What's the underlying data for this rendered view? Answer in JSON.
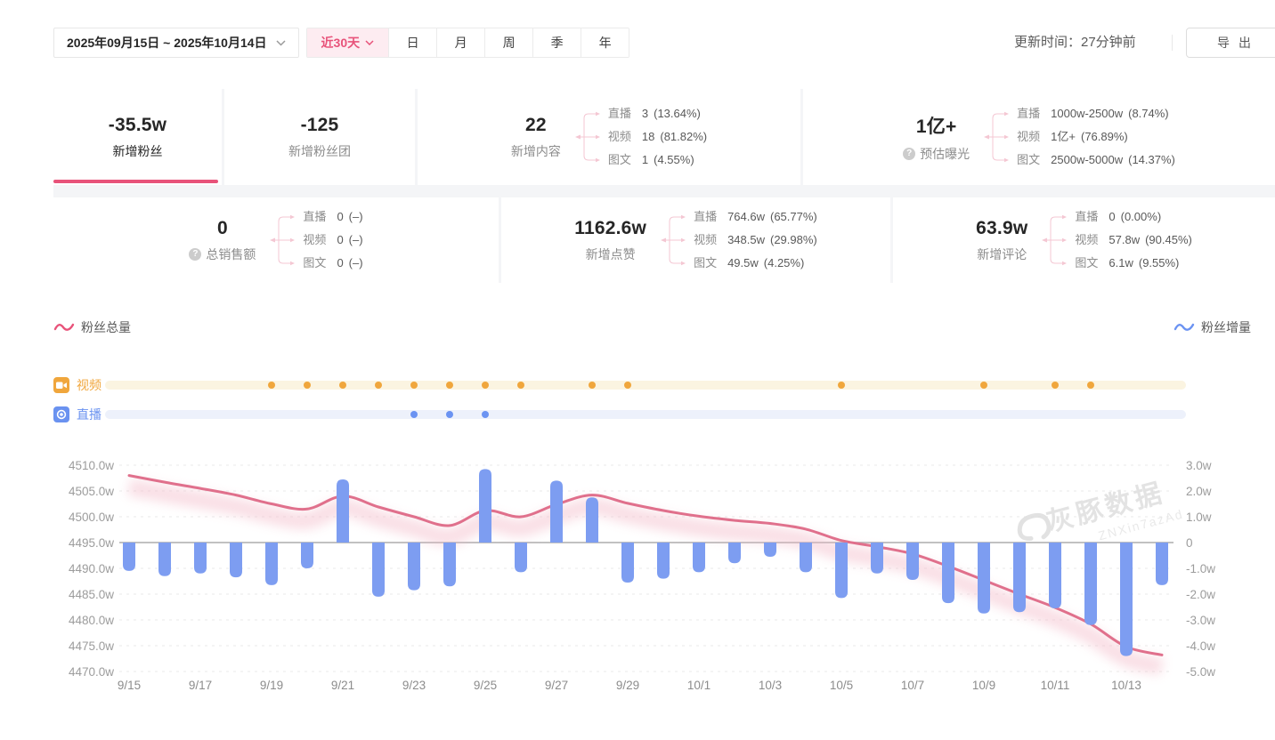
{
  "colors": {
    "accent_pink": "#e8537a",
    "line_pink": "#e0708c",
    "bar_blue": "#7d9df1",
    "video_orange": "#f0a63c",
    "live_blue": "#6b93f2"
  },
  "toolbar": {
    "date_range": "2025年09月15日 ~ 2025年10月14日",
    "quick_range": "近30天",
    "period_tabs": [
      "日",
      "月",
      "周",
      "季",
      "年"
    ],
    "update_time_label": "更新时间：27分钟前",
    "export_label": "导出"
  },
  "stats": {
    "cards": [
      {
        "value": "-35.5w",
        "label": "新增粉丝",
        "selected": true
      },
      {
        "value": "-125",
        "label": "新增粉丝团"
      },
      {
        "value": "22",
        "label": "新增内容",
        "breakdown": [
          {
            "name": "直播",
            "value": "3",
            "pct": "(13.64%)"
          },
          {
            "name": "视频",
            "value": "18",
            "pct": "(81.82%)"
          },
          {
            "name": "图文",
            "value": "1",
            "pct": "(4.55%)"
          }
        ]
      },
      {
        "value": "1亿+",
        "label": "预估曝光",
        "help": true,
        "breakdown": [
          {
            "name": "直播",
            "value": "1000w-2500w",
            "pct": "(8.74%)"
          },
          {
            "name": "视频",
            "value": "1亿+",
            "pct": "(76.89%)"
          },
          {
            "name": "图文",
            "value": "2500w-5000w",
            "pct": "(14.37%)"
          }
        ]
      },
      {
        "value": "0",
        "label": "总销售额",
        "help": true,
        "breakdown": [
          {
            "name": "直播",
            "value": "0",
            "pct": "(–)"
          },
          {
            "name": "视频",
            "value": "0",
            "pct": "(–)"
          },
          {
            "name": "图文",
            "value": "0",
            "pct": "(–)"
          }
        ]
      },
      {
        "value": "1162.6w",
        "label": "新增点赞",
        "breakdown": [
          {
            "name": "直播",
            "value": "764.6w",
            "pct": "(65.77%)"
          },
          {
            "name": "视频",
            "value": "348.5w",
            "pct": "(29.98%)"
          },
          {
            "name": "图文",
            "value": "49.5w",
            "pct": "(4.25%)"
          }
        ]
      },
      {
        "value": "63.9w",
        "label": "新增评论",
        "breakdown": [
          {
            "name": "直播",
            "value": "0",
            "pct": "(0.00%)"
          },
          {
            "name": "视频",
            "value": "57.8w",
            "pct": "(90.45%)"
          },
          {
            "name": "图文",
            "value": "6.1w",
            "pct": "(9.55%)"
          }
        ]
      }
    ]
  },
  "legend": {
    "left": "粉丝总量",
    "right": "粉丝增量"
  },
  "timeline": {
    "video_label": "视频",
    "live_label": "直播",
    "video_days": [
      "9/19",
      "9/20",
      "9/21",
      "9/22",
      "9/23",
      "9/24",
      "9/25",
      "9/26",
      "9/28",
      "9/29",
      "10/5",
      "10/9",
      "10/11",
      "10/12"
    ],
    "live_days": [
      "9/23",
      "9/24",
      "9/25"
    ]
  },
  "watermark": {
    "brand": "灰豚数据",
    "code": "ZNXin7azAd"
  },
  "chart_data": {
    "type": "line+bar",
    "x": [
      "9/15",
      "9/16",
      "9/17",
      "9/18",
      "9/19",
      "9/20",
      "9/21",
      "9/22",
      "9/23",
      "9/24",
      "9/25",
      "9/26",
      "9/27",
      "9/28",
      "9/29",
      "9/30",
      "10/1",
      "10/2",
      "10/3",
      "10/4",
      "10/5",
      "10/6",
      "10/7",
      "10/8",
      "10/9",
      "10/10",
      "10/11",
      "10/12",
      "10/13",
      "10/14"
    ],
    "x_tick_labels": [
      "9/15",
      "9/17",
      "9/19",
      "9/21",
      "9/23",
      "9/25",
      "9/27",
      "9/29",
      "10/1",
      "10/3",
      "10/5",
      "10/7",
      "10/9",
      "10/11",
      "10/13"
    ],
    "series": [
      {
        "name": "粉丝总量",
        "type": "line",
        "axis": "left",
        "color": "#e0708c",
        "unit": "w",
        "values": [
          4508.0,
          4506.7,
          4505.5,
          4504.2,
          4502.5,
          4501.5,
          4504.0,
          4501.9,
          4500.0,
          4498.3,
          4501.2,
          4500.0,
          4502.4,
          4504.2,
          4502.6,
          4501.2,
          4500.1,
          4499.3,
          4498.7,
          4497.6,
          4495.4,
          4494.2,
          4492.8,
          4490.4,
          4487.7,
          4485.0,
          4482.4,
          4479.2,
          4474.8,
          4473.2
        ]
      },
      {
        "name": "粉丝增量",
        "type": "bar",
        "axis": "right",
        "color": "#7d9df1",
        "unit": "w",
        "values": [
          -1.1,
          -1.3,
          -1.2,
          -1.35,
          -1.65,
          -1.0,
          2.45,
          -2.1,
          -1.85,
          -1.7,
          2.85,
          -1.15,
          2.4,
          1.75,
          -1.55,
          -1.4,
          -1.15,
          -0.8,
          -0.55,
          -1.15,
          -2.15,
          -1.2,
          -1.45,
          -2.35,
          -2.75,
          -2.7,
          -2.55,
          -3.2,
          -4.4,
          -1.65
        ]
      }
    ],
    "left_axis": {
      "ticks": [
        "4510.0w",
        "4505.0w",
        "4500.0w",
        "4495.0w",
        "4490.0w",
        "4485.0w",
        "4480.0w",
        "4475.0w",
        "4470.0w"
      ],
      "min": 4470,
      "max": 4510
    },
    "right_axis": {
      "ticks": [
        "3.0w",
        "2.0w",
        "1.0w",
        "0",
        "-1.0w",
        "-2.0w",
        "-3.0w",
        "-4.0w",
        "-5.0w"
      ],
      "min": -5,
      "max": 3
    },
    "grid": "dashed-horizontal",
    "legend_position": "above-left-and-right"
  }
}
